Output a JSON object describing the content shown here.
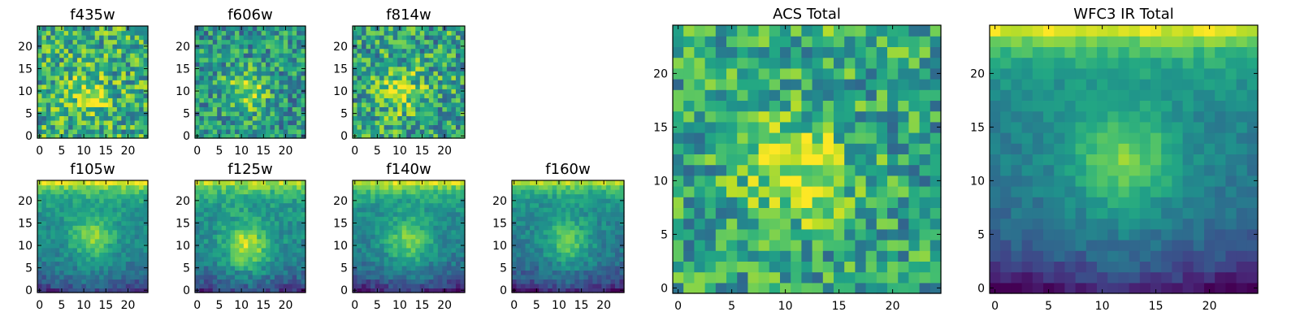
{
  "colormap": "viridis",
  "chart_data": [
    {
      "type": "heatmap",
      "title": "f435w",
      "x_ticks": [
        0,
        5,
        10,
        15,
        20
      ],
      "y_ticks": [
        0,
        5,
        10,
        15,
        20
      ],
      "xlim": [
        -0.5,
        24.5
      ],
      "ylim": [
        -0.5,
        24.5
      ],
      "grid": false,
      "pattern": {
        "background": 0.62,
        "noise": 0.3,
        "blob_center": [
          11,
          9
        ],
        "blob_strength": 0.25,
        "top_strength": 0.0,
        "bottom_strength": 0.0
      }
    },
    {
      "type": "heatmap",
      "title": "f606w",
      "x_ticks": [
        0,
        5,
        10,
        15,
        20
      ],
      "y_ticks": [
        0,
        5,
        10,
        15,
        20
      ],
      "xlim": [
        -0.5,
        24.5
      ],
      "ylim": [
        -0.5,
        24.5
      ],
      "grid": false,
      "pattern": {
        "background": 0.52,
        "noise": 0.26,
        "blob_center": [
          11,
          10
        ],
        "blob_strength": 0.35,
        "top_strength": 0.0,
        "bottom_strength": 0.0
      }
    },
    {
      "type": "heatmap",
      "title": "f814w",
      "x_ticks": [
        0,
        5,
        10,
        15,
        20
      ],
      "y_ticks": [
        0,
        5,
        10,
        15,
        20
      ],
      "xlim": [
        -0.5,
        24.5
      ],
      "ylim": [
        -0.5,
        24.5
      ],
      "grid": false,
      "pattern": {
        "background": 0.58,
        "noise": 0.3,
        "blob_center": [
          10,
          10
        ],
        "blob_strength": 0.3,
        "top_strength": 0.0,
        "bottom_strength": 0.0
      }
    },
    {
      "type": "heatmap",
      "title": "f105w",
      "x_ticks": [
        0,
        5,
        10,
        15,
        20
      ],
      "y_ticks": [
        0,
        5,
        10,
        15,
        20
      ],
      "xlim": [
        -0.5,
        24.5
      ],
      "ylim": [
        -0.5,
        24.5
      ],
      "grid": false,
      "pattern": {
        "background": 0.5,
        "noise": 0.1,
        "blob_center": [
          12,
          12
        ],
        "blob_strength": 0.3,
        "top_strength": 0.45,
        "bottom_strength": 0.3
      }
    },
    {
      "type": "heatmap",
      "title": "f125w",
      "x_ticks": [
        0,
        5,
        10,
        15,
        20
      ],
      "y_ticks": [
        0,
        5,
        10,
        15,
        20
      ],
      "xlim": [
        -0.5,
        24.5
      ],
      "ylim": [
        -0.5,
        24.5
      ],
      "grid": false,
      "pattern": {
        "background": 0.5,
        "noise": 0.12,
        "blob_center": [
          11,
          10
        ],
        "blob_strength": 0.42,
        "top_strength": 0.4,
        "bottom_strength": 0.3
      }
    },
    {
      "type": "heatmap",
      "title": "f140w",
      "x_ticks": [
        0,
        5,
        10,
        15,
        20
      ],
      "y_ticks": [
        0,
        5,
        10,
        15,
        20
      ],
      "xlim": [
        -0.5,
        24.5
      ],
      "ylim": [
        -0.5,
        24.5
      ],
      "grid": false,
      "pattern": {
        "background": 0.48,
        "noise": 0.1,
        "blob_center": [
          12,
          11
        ],
        "blob_strength": 0.32,
        "top_strength": 0.45,
        "bottom_strength": 0.35
      }
    },
    {
      "type": "heatmap",
      "title": "f160w",
      "x_ticks": [
        0,
        5,
        10,
        15,
        20
      ],
      "y_ticks": [
        0,
        5,
        10,
        15,
        20
      ],
      "xlim": [
        -0.5,
        24.5
      ],
      "ylim": [
        -0.5,
        24.5
      ],
      "grid": false,
      "pattern": {
        "background": 0.46,
        "noise": 0.1,
        "blob_center": [
          12,
          11
        ],
        "blob_strength": 0.3,
        "top_strength": 0.4,
        "bottom_strength": 0.35
      }
    },
    {
      "type": "heatmap",
      "title": "ACS Total",
      "x_ticks": [
        0,
        5,
        10,
        15,
        20
      ],
      "y_ticks": [
        0,
        5,
        10,
        15,
        20
      ],
      "xlim": [
        -0.5,
        24.5
      ],
      "ylim": [
        -0.5,
        24.5
      ],
      "grid": false,
      "pattern": {
        "background": 0.58,
        "noise": 0.26,
        "blob_center": [
          11,
          11
        ],
        "blob_strength": 0.38,
        "top_strength": 0.05,
        "bottom_strength": 0.0
      }
    },
    {
      "type": "heatmap",
      "title": "WFC3 IR Total",
      "x_ticks": [
        0,
        5,
        10,
        15,
        20
      ],
      "y_ticks": [
        0,
        5,
        10,
        15,
        20
      ],
      "xlim": [
        -0.5,
        24.5
      ],
      "ylim": [
        -0.5,
        24.5
      ],
      "grid": false,
      "pattern": {
        "background": 0.45,
        "noise": 0.07,
        "blob_center": [
          12,
          12
        ],
        "blob_strength": 0.35,
        "top_strength": 0.5,
        "bottom_strength": 0.38
      }
    }
  ]
}
